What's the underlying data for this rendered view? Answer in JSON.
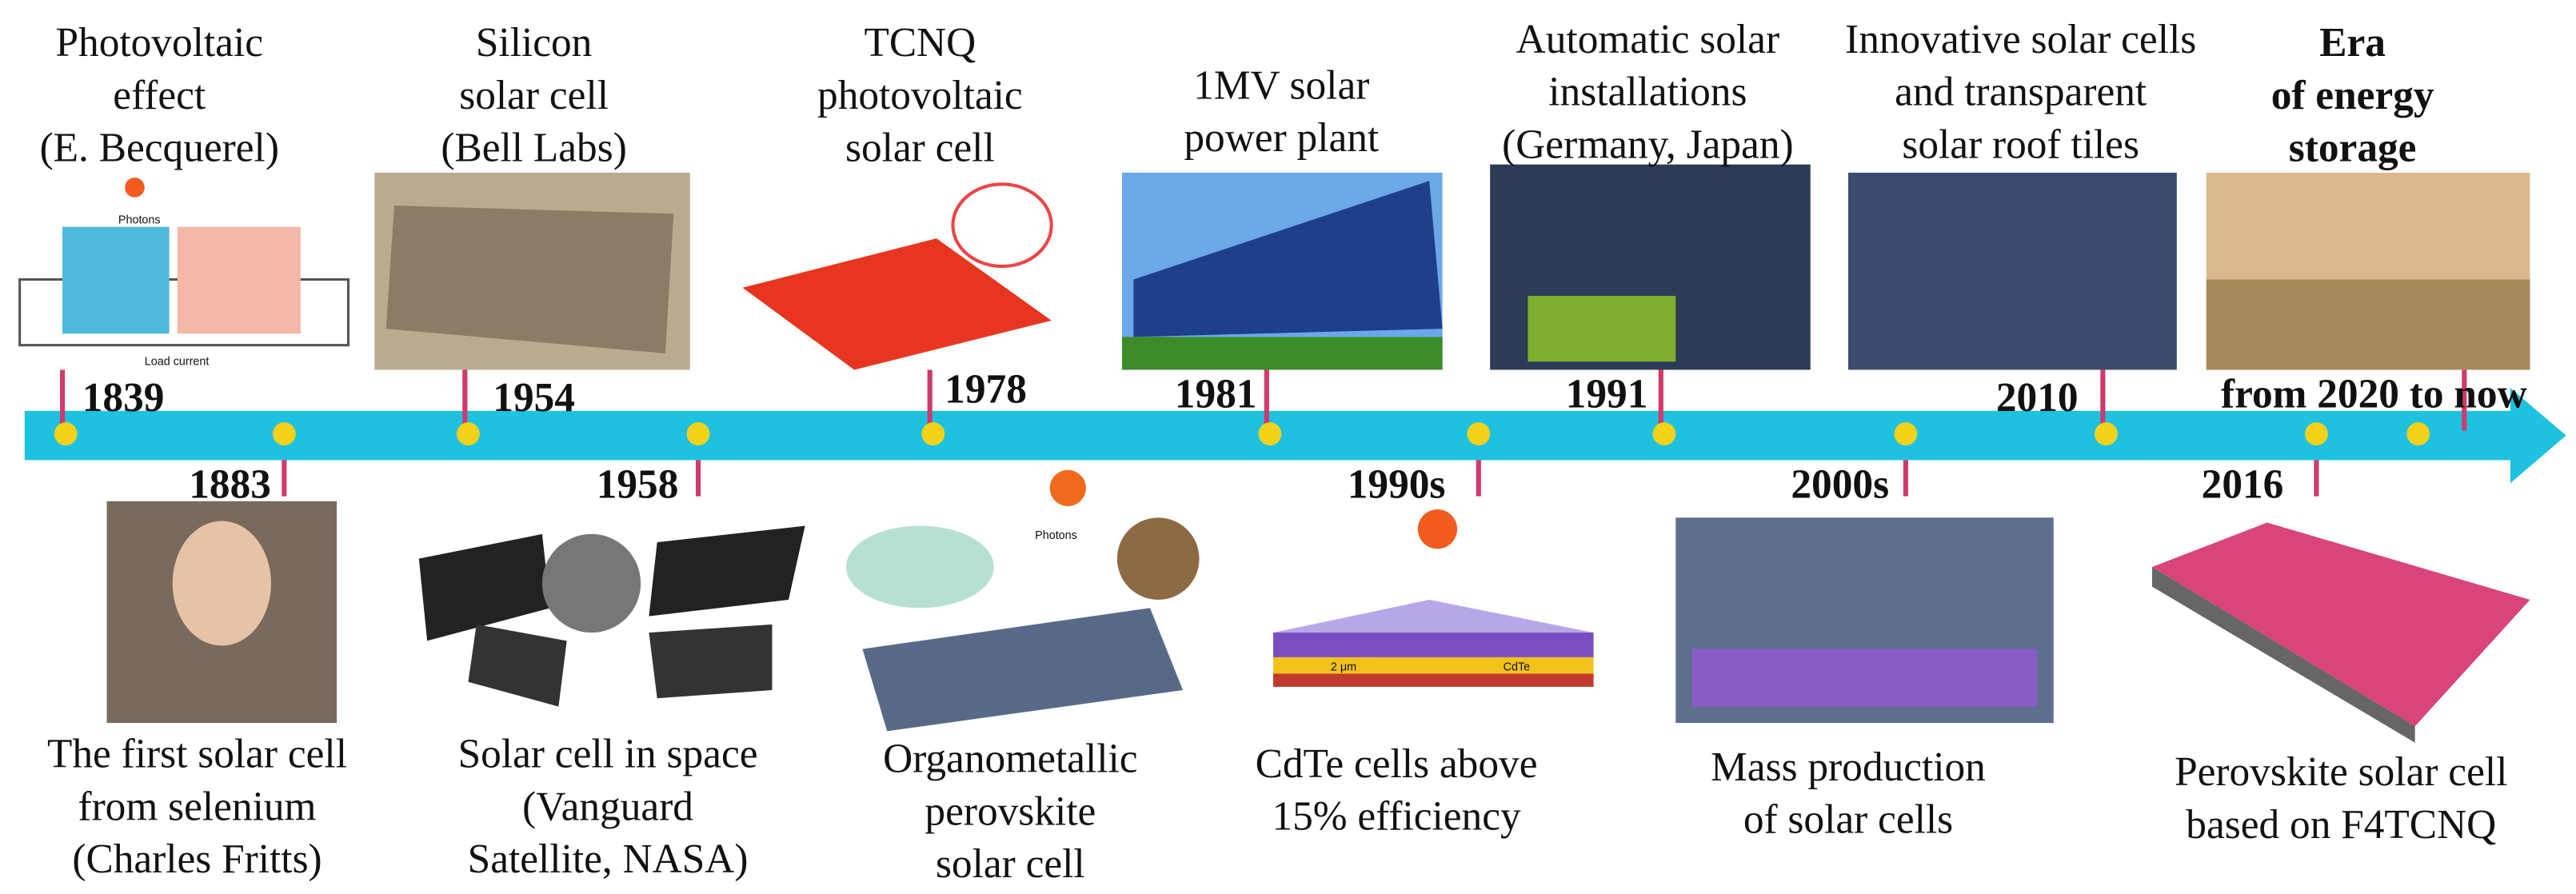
{
  "timeline": {
    "events": [
      {
        "year": "1839",
        "label_lines": [
          "Photovoltaic",
          "effect",
          "(E. Becquerel)"
        ]
      },
      {
        "year": "1954",
        "label_lines": [
          "Silicon",
          "solar cell",
          "(Bell Labs)"
        ]
      },
      {
        "year": "1978",
        "label_lines": [
          "TCNQ",
          "photovoltaic",
          "solar cell"
        ]
      },
      {
        "year": "1981",
        "label_lines": [
          "1MV solar",
          "power plant"
        ]
      },
      {
        "year": "1991",
        "label_lines": [
          "Automatic solar",
          "installations",
          "(Germany, Japan)"
        ]
      },
      {
        "year": "2010",
        "label_lines": [
          "Innovative solar cells",
          "and transparent",
          "solar roof tiles"
        ]
      },
      {
        "year": "from 2020 to now",
        "label_lines": [
          "Era",
          "of energy",
          "storage"
        ]
      },
      {
        "year": "1883",
        "label_lines": [
          "The first solar cell",
          "from selenium",
          "(Charles Fritts)"
        ]
      },
      {
        "year": "1958",
        "label_lines": [
          "Solar cell in space",
          "(Vanguard",
          "Satellite, NASA)"
        ]
      },
      {
        "label_lines": [
          "Organometallic",
          "perovskite",
          "solar cell"
        ]
      },
      {
        "year": "1990s",
        "label_lines": [
          "CdTe cells above",
          "15% efficiency"
        ]
      },
      {
        "year": "2000s",
        "label_lines": [
          "Mass production",
          "of solar cells"
        ]
      },
      {
        "year": "2016",
        "label_lines": [
          "Perovskite solar cell",
          "based on F4TCNQ"
        ]
      }
    ],
    "image_texts": {
      "photons_1": "Photons",
      "load_current": "Load current",
      "photons_2": "Photons",
      "thickness": "2 μm",
      "cdte": "CdTe"
    }
  }
}
